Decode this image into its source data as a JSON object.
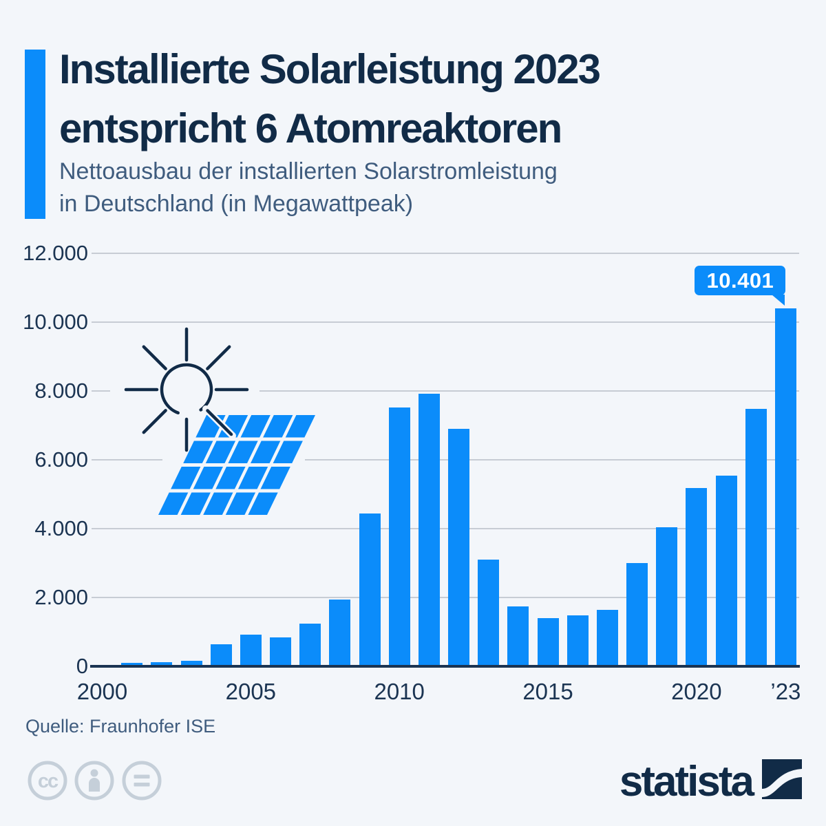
{
  "meta": {
    "background": "#f3f6fa",
    "accent_blue": "#0b8cfa",
    "navy": "#112b47",
    "slate_text": "#3f5c7e",
    "grid_color": "#c7ccd4",
    "axis_color": "#1b3452",
    "icon_gray": "#c5cfd9"
  },
  "header": {
    "title_line1": "Installierte Solarleistung 2023",
    "title_line2": "entspricht 6 Atomreaktoren",
    "subtitle_line1": "Nettoausbau der installierten Solarstromleistung",
    "subtitle_line2": "in Deutschland (in Megawattpeak)"
  },
  "chart_data": {
    "type": "bar",
    "title": "Installierte Solarleistung 2023 entspricht 6 Atomreaktoren",
    "subtitle": "Nettoausbau der installierten Solarstromleistung in Deutschland (in Megawattpeak)",
    "unit": "Megawattpeak",
    "bar_color": "#0b8cfa",
    "grid": true,
    "ylim": [
      0,
      12000
    ],
    "categories": [
      2000,
      2001,
      2002,
      2003,
      2004,
      2005,
      2006,
      2007,
      2008,
      2009,
      2010,
      2011,
      2012,
      2013,
      2014,
      2015,
      2016,
      2017,
      2018,
      2019,
      2020,
      2021,
      2022,
      2023
    ],
    "values": [
      44,
      110,
      115,
      155,
      650,
      930,
      845,
      1240,
      1950,
      4440,
      7520,
      7920,
      6900,
      3100,
      1740,
      1400,
      1480,
      1650,
      3000,
      4040,
      5180,
      5550,
      7490,
      10401
    ],
    "y_axis": {
      "ticks": [
        {
          "value": 12000,
          "label": "12.000"
        },
        {
          "value": 10000,
          "label": "10.000"
        },
        {
          "value": 8000,
          "label": "8.000"
        },
        {
          "value": 6000,
          "label": "6.000"
        },
        {
          "value": 4000,
          "label": "4.000"
        },
        {
          "value": 2000,
          "label": "2.000"
        },
        {
          "value": 0,
          "label": "0"
        }
      ]
    },
    "x_axis": {
      "ticks": [
        {
          "year": 2000,
          "label": "2000"
        },
        {
          "year": 2005,
          "label": "2005"
        },
        {
          "year": 2010,
          "label": "2010"
        },
        {
          "year": 2015,
          "label": "2015"
        },
        {
          "year": 2020,
          "label": "2020"
        },
        {
          "year": 2023,
          "label": "’23"
        }
      ]
    },
    "annotation": {
      "year": 2023,
      "value_label": "10.401"
    },
    "legend": null
  },
  "illustration": {
    "icons": [
      "sun-icon",
      "solar-panel-icon"
    ]
  },
  "source": {
    "label": "Quelle: Fraunhofer ISE"
  },
  "footer": {
    "license_icons": [
      "cc-license-icon",
      "attribution-icon",
      "equals-icon"
    ]
  },
  "brand": {
    "name": "statista"
  }
}
